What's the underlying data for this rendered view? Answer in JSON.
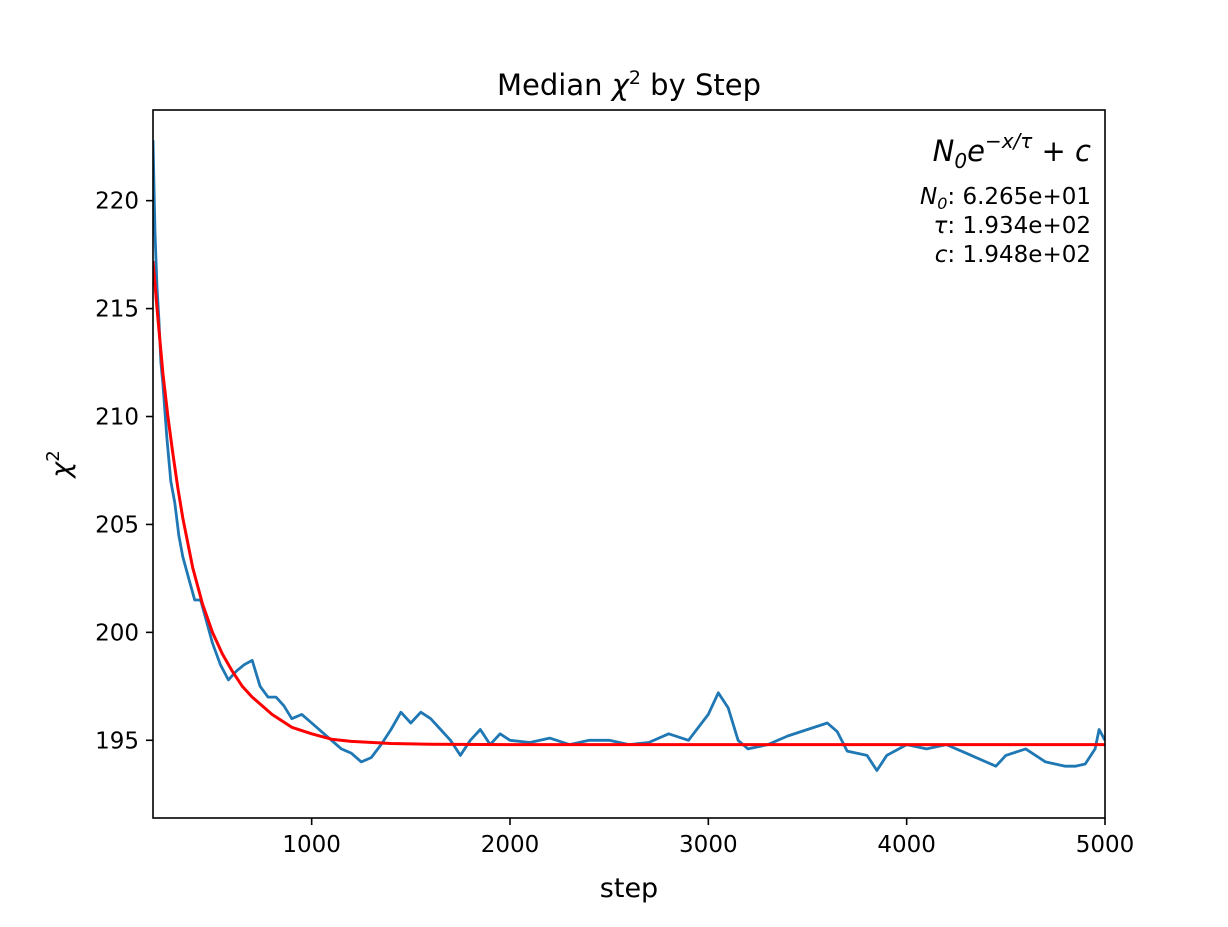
{
  "title_prefix": "Median ",
  "title_symbol": "χ",
  "title_sup": "2",
  "title_suffix": " by Step",
  "xlabel": "step",
  "ylabel_symbol": "χ",
  "ylabel_sup": "2",
  "colors": {
    "data_line": "#1f77b4",
    "fit_line": "#ff0000",
    "axes": "#000000",
    "background": "#ffffff"
  },
  "fit_annotation": {
    "formula_base": "N",
    "formula_base_sub": "0",
    "formula_exp_base": "e",
    "formula_exponent": "−x/τ",
    "formula_tail": " + c",
    "params": [
      {
        "symbol": "N",
        "sub": "0",
        "text": ": 6.265e+01"
      },
      {
        "symbol": "τ",
        "sub": "",
        "text": ": 1.934e+02"
      },
      {
        "symbol": "c",
        "sub": "",
        "text": ": 1.948e+02"
      }
    ]
  },
  "chart_data": {
    "type": "line",
    "xlim": [
      200,
      5000
    ],
    "ylim": [
      191.4,
      224.2
    ],
    "x_ticks": [
      1000,
      2000,
      3000,
      4000,
      5000
    ],
    "x_tick_labels": [
      "1000",
      "2000",
      "3000",
      "4000",
      "5000"
    ],
    "y_ticks": [
      195,
      200,
      205,
      210,
      215,
      220
    ],
    "y_tick_labels": [
      "195",
      "200",
      "205",
      "210",
      "215",
      "220"
    ],
    "grid": false,
    "series": [
      {
        "role": "median chi2 (noisy)",
        "x": [
          200,
          210,
          220,
          230,
          240,
          250,
          270,
          290,
          310,
          330,
          350,
          380,
          410,
          440,
          470,
          500,
          540,
          580,
          620,
          660,
          700,
          740,
          780,
          820,
          860,
          900,
          950,
          1000,
          1050,
          1100,
          1150,
          1200,
          1250,
          1300,
          1350,
          1400,
          1450,
          1500,
          1550,
          1600,
          1650,
          1700,
          1750,
          1800,
          1850,
          1900,
          1950,
          2000,
          2100,
          2200,
          2300,
          2400,
          2500,
          2600,
          2700,
          2800,
          2900,
          3000,
          3050,
          3100,
          3150,
          3200,
          3300,
          3400,
          3500,
          3600,
          3650,
          3700,
          3800,
          3850,
          3900,
          4000,
          4100,
          4200,
          4300,
          4400,
          4450,
          4500,
          4600,
          4700,
          4800,
          4850,
          4900,
          4950,
          4970,
          5000
        ],
        "y": [
          222.8,
          218.5,
          216.0,
          214.5,
          212.5,
          211.5,
          209.0,
          207.0,
          206.0,
          204.5,
          203.5,
          202.5,
          201.5,
          201.5,
          200.5,
          199.5,
          198.5,
          197.8,
          198.2,
          198.5,
          198.7,
          197.5,
          197.0,
          197.0,
          196.6,
          196.0,
          196.2,
          195.8,
          195.4,
          195.0,
          194.6,
          194.4,
          194.0,
          194.2,
          194.8,
          195.5,
          196.3,
          195.8,
          196.3,
          196.0,
          195.5,
          195.0,
          194.3,
          195.0,
          195.5,
          194.8,
          195.3,
          195.0,
          194.9,
          195.1,
          194.8,
          195.0,
          195.0,
          194.8,
          194.9,
          195.3,
          195.0,
          196.2,
          197.2,
          196.5,
          195.0,
          194.6,
          194.8,
          195.2,
          195.5,
          195.8,
          195.4,
          194.5,
          194.3,
          193.6,
          194.3,
          194.8,
          194.6,
          194.8,
          194.4,
          194.0,
          193.8,
          194.3,
          194.6,
          194.0,
          193.8,
          193.8,
          193.9,
          194.6,
          195.5,
          195.0
        ]
      },
      {
        "role": "exponential fit",
        "x": [
          200,
          225,
          250,
          275,
          300,
          325,
          350,
          400,
          450,
          500,
          550,
          600,
          650,
          700,
          800,
          900,
          1000,
          1100,
          1200,
          1400,
          1600,
          2000,
          3000,
          4000,
          5000
        ],
        "y": [
          217.2,
          214.5,
          212.0,
          210.0,
          208.3,
          206.7,
          205.3,
          203.0,
          201.3,
          200.0,
          199.0,
          198.2,
          197.5,
          197.0,
          196.2,
          195.6,
          195.3,
          195.05,
          194.95,
          194.85,
          194.82,
          194.8,
          194.8,
          194.8,
          194.8
        ]
      }
    ]
  }
}
